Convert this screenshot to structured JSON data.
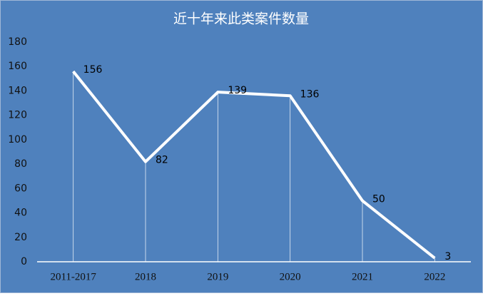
{
  "chart_data": {
    "type": "line",
    "title": "近十年来此类案件数量",
    "categories": [
      "2011-2017",
      "2018",
      "2019",
      "2020",
      "2021",
      "2022"
    ],
    "values": [
      156,
      82,
      139,
      136,
      50,
      3
    ],
    "color": "#ffffff",
    "background": "#4f81bd",
    "ylim": [
      0,
      180
    ],
    "yticks": [
      0,
      20,
      40,
      60,
      80,
      100,
      120,
      140,
      160,
      180
    ],
    "drop_lines": true,
    "data_labels": true
  }
}
